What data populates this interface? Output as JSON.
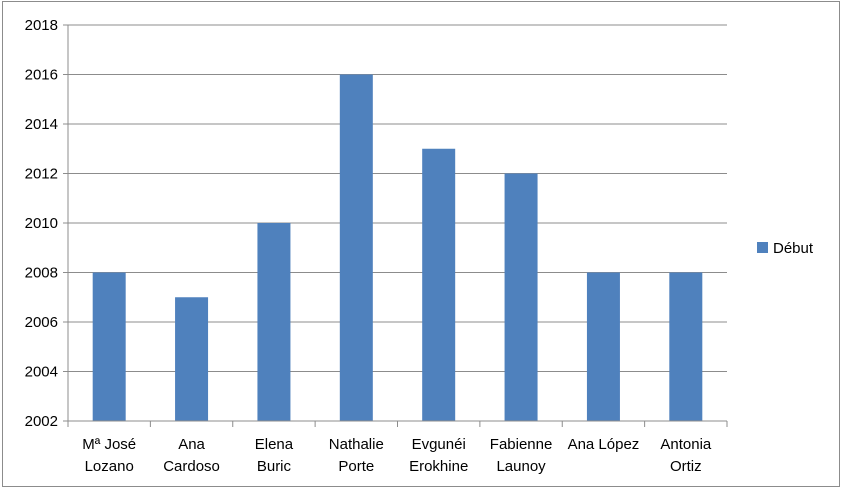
{
  "chart_data": {
    "type": "bar",
    "categories": [
      [
        "Mª José",
        "Lozano"
      ],
      [
        "Ana",
        "Cardoso"
      ],
      [
        "Elena",
        "Buric"
      ],
      [
        "Nathalie",
        "Porte"
      ],
      [
        "Evgunéi",
        "Erokhine"
      ],
      [
        "Fabienne",
        "Launoy"
      ],
      [
        "Ana López"
      ],
      [
        "Antonia",
        "Ortiz"
      ]
    ],
    "series": [
      {
        "name": "Début",
        "values": [
          2008,
          2007,
          2010,
          2016,
          2013,
          2012,
          2008,
          2008
        ],
        "color": "#4f81bd"
      }
    ],
    "ylim": [
      2002,
      2018
    ],
    "y_ticks": [
      "2002",
      "2004",
      "2006",
      "2008",
      "2010",
      "2012",
      "2014",
      "2016",
      "2018"
    ],
    "grid": true,
    "legend_position": "right",
    "title": "",
    "xlabel": "",
    "ylabel": ""
  }
}
